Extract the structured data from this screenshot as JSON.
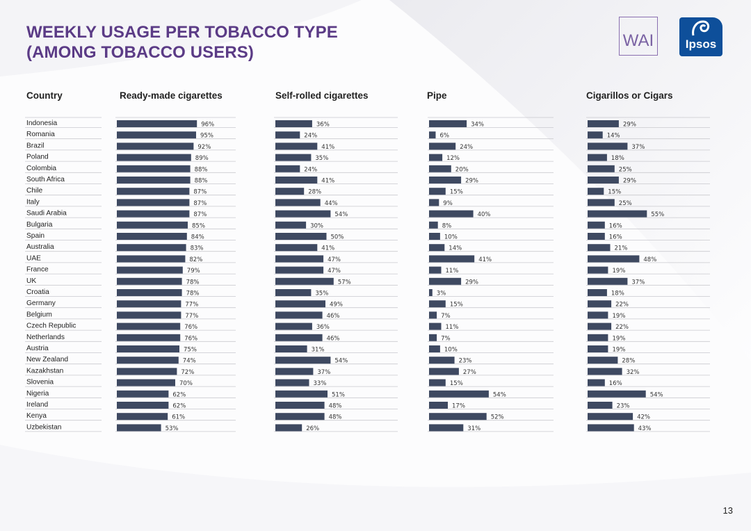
{
  "title_lines": [
    "WEEKLY USAGE PER TOBACCO TYPE",
    "(AMONG TOBACCO USERS)"
  ],
  "logos": {
    "wai": "WAI",
    "ipsos": "Ipsos"
  },
  "page_number": "13",
  "colors": {
    "bar": "#3e4961",
    "title": "#5b3b86",
    "line": "#c9c9ce"
  },
  "chart_data": {
    "type": "bar",
    "orientation": "horizontal",
    "category_header": "Country",
    "categories": [
      "Indonesia",
      "Romania",
      "Brazil",
      "Poland",
      "Colombia",
      "South Africa",
      "Chile",
      "Italy",
      "Saudi Arabia",
      "Bulgaria",
      "Spain",
      "Australia",
      "UAE",
      "France",
      "UK",
      "Croatia",
      "Germany",
      "Belgium",
      "Czech Republic",
      "Netherlands",
      "Austria",
      "New Zealand",
      "Kazakhstan",
      "Slovenia",
      "Nigeria",
      "Ireland",
      "Kenya",
      "Uzbekistan"
    ],
    "series": [
      {
        "name": "Ready-made cigarettes",
        "values": [
          96,
          95,
          92,
          89,
          88,
          88,
          87,
          87,
          87,
          85,
          84,
          83,
          82,
          79,
          78,
          78,
          77,
          77,
          76,
          76,
          75,
          74,
          72,
          70,
          62,
          62,
          61,
          53
        ]
      },
      {
        "name": "Self-rolled cigarettes",
        "values": [
          36,
          24,
          41,
          35,
          24,
          41,
          28,
          44,
          54,
          30,
          50,
          41,
          47,
          47,
          57,
          35,
          49,
          46,
          36,
          46,
          31,
          54,
          37,
          33,
          51,
          48,
          48,
          26
        ]
      },
      {
        "name": "Pipe",
        "values": [
          34,
          6,
          24,
          12,
          20,
          29,
          15,
          9,
          40,
          8,
          10,
          14,
          41,
          11,
          29,
          3,
          15,
          7,
          11,
          7,
          10,
          23,
          27,
          15,
          54,
          17,
          52,
          31
        ]
      },
      {
        "name": "Cigarillos or Cigars",
        "values": [
          29,
          14,
          37,
          18,
          25,
          29,
          15,
          25,
          55,
          16,
          16,
          21,
          48,
          19,
          37,
          18,
          22,
          19,
          22,
          19,
          19,
          28,
          32,
          16,
          54,
          23,
          42,
          43
        ]
      }
    ],
    "unit": "%"
  }
}
